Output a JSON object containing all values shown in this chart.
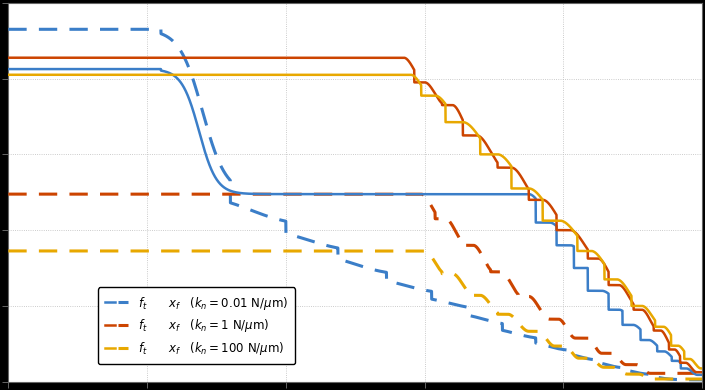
{
  "background_color": "#000000",
  "plot_bg_color": "#ffffff",
  "grid_color": "#bbbbbb",
  "colors": {
    "blue": "#3b7ec8",
    "orange": "#cc4400",
    "gold": "#e8a800"
  },
  "figsize": [
    7.05,
    3.9
  ],
  "dpi": 100,
  "xlim": [
    0,
    1
  ],
  "ylim": [
    0,
    1
  ],
  "lw_solid": 1.8,
  "lw_dash": 2.2
}
